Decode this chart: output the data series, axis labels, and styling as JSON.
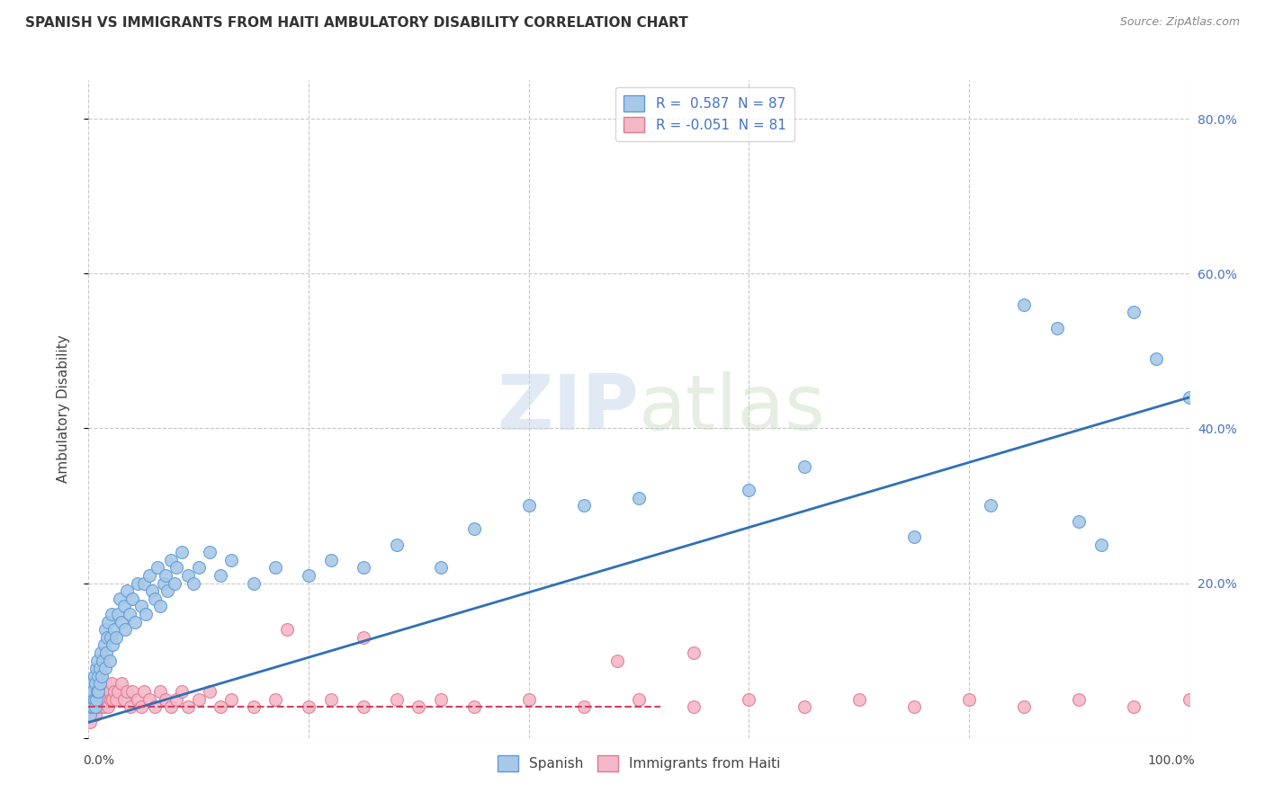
{
  "title": "SPANISH VS IMMIGRANTS FROM HAITI AMBULATORY DISABILITY CORRELATION CHART",
  "source": "Source: ZipAtlas.com",
  "ylabel": "Ambulatory Disability",
  "watermark": "ZIPatlas",
  "legend_label_blue": "R =  0.587  N = 87",
  "legend_label_pink": "R = -0.051  N = 81",
  "legend_bottom": [
    "Spanish",
    "Immigrants from Haiti"
  ],
  "spanish_color": "#a8c8e8",
  "spanish_edge": "#5b9bd5",
  "haiti_color": "#f4b8c8",
  "haiti_edge": "#e07890",
  "blue_line_color": "#3070b8",
  "red_line_color": "#d04060",
  "grid_color": "#c8c8c8",
  "background": "#ffffff",
  "xlim": [
    0.0,
    1.0
  ],
  "ylim": [
    0.0,
    0.85
  ],
  "yticks": [
    0.0,
    0.2,
    0.4,
    0.6,
    0.8
  ],
  "ytick_labels": [
    "",
    "20.0%",
    "40.0%",
    "60.0%",
    "80.0%"
  ],
  "xtick_positions": [
    0.0,
    0.2,
    0.4,
    0.6,
    0.8,
    1.0
  ],
  "spanish_x": [
    0.001,
    0.002,
    0.002,
    0.003,
    0.003,
    0.004,
    0.004,
    0.005,
    0.005,
    0.006,
    0.006,
    0.007,
    0.007,
    0.008,
    0.008,
    0.009,
    0.009,
    0.01,
    0.01,
    0.011,
    0.012,
    0.013,
    0.014,
    0.015,
    0.015,
    0.016,
    0.017,
    0.018,
    0.019,
    0.02,
    0.021,
    0.022,
    0.023,
    0.025,
    0.027,
    0.028,
    0.03,
    0.032,
    0.033,
    0.035,
    0.037,
    0.04,
    0.042,
    0.045,
    0.048,
    0.05,
    0.052,
    0.055,
    0.058,
    0.06,
    0.063,
    0.065,
    0.068,
    0.07,
    0.072,
    0.075,
    0.078,
    0.08,
    0.085,
    0.09,
    0.095,
    0.1,
    0.11,
    0.12,
    0.13,
    0.15,
    0.17,
    0.2,
    0.22,
    0.25,
    0.28,
    0.32,
    0.35,
    0.4,
    0.45,
    0.5,
    0.6,
    0.65,
    0.75,
    0.82,
    0.85,
    0.88,
    0.9,
    0.92,
    0.95,
    0.97,
    1.0
  ],
  "spanish_y": [
    0.03,
    0.04,
    0.06,
    0.05,
    0.07,
    0.04,
    0.06,
    0.05,
    0.08,
    0.04,
    0.07,
    0.05,
    0.09,
    0.06,
    0.1,
    0.08,
    0.06,
    0.09,
    0.07,
    0.11,
    0.08,
    0.1,
    0.12,
    0.09,
    0.14,
    0.11,
    0.13,
    0.15,
    0.1,
    0.13,
    0.16,
    0.12,
    0.14,
    0.13,
    0.16,
    0.18,
    0.15,
    0.17,
    0.14,
    0.19,
    0.16,
    0.18,
    0.15,
    0.2,
    0.17,
    0.2,
    0.16,
    0.21,
    0.19,
    0.18,
    0.22,
    0.17,
    0.2,
    0.21,
    0.19,
    0.23,
    0.2,
    0.22,
    0.24,
    0.21,
    0.2,
    0.22,
    0.24,
    0.21,
    0.23,
    0.2,
    0.22,
    0.21,
    0.23,
    0.22,
    0.25,
    0.22,
    0.27,
    0.3,
    0.3,
    0.31,
    0.32,
    0.35,
    0.26,
    0.3,
    0.56,
    0.53,
    0.28,
    0.25,
    0.55,
    0.49,
    0.44
  ],
  "haiti_x": [
    0.001,
    0.001,
    0.002,
    0.002,
    0.003,
    0.003,
    0.004,
    0.004,
    0.005,
    0.005,
    0.006,
    0.006,
    0.007,
    0.007,
    0.008,
    0.008,
    0.009,
    0.009,
    0.01,
    0.01,
    0.011,
    0.012,
    0.013,
    0.014,
    0.015,
    0.016,
    0.017,
    0.018,
    0.019,
    0.02,
    0.021,
    0.022,
    0.023,
    0.025,
    0.027,
    0.03,
    0.032,
    0.035,
    0.038,
    0.04,
    0.045,
    0.048,
    0.05,
    0.055,
    0.06,
    0.065,
    0.07,
    0.075,
    0.08,
    0.085,
    0.09,
    0.1,
    0.11,
    0.12,
    0.13,
    0.15,
    0.17,
    0.2,
    0.22,
    0.25,
    0.28,
    0.3,
    0.32,
    0.35,
    0.4,
    0.45,
    0.5,
    0.55,
    0.6,
    0.65,
    0.7,
    0.75,
    0.8,
    0.85,
    0.9,
    0.95,
    1.0,
    0.48,
    0.18,
    0.25,
    0.55
  ],
  "haiti_y": [
    0.02,
    0.04,
    0.03,
    0.05,
    0.04,
    0.06,
    0.03,
    0.05,
    0.04,
    0.06,
    0.03,
    0.05,
    0.04,
    0.06,
    0.05,
    0.07,
    0.04,
    0.06,
    0.05,
    0.07,
    0.04,
    0.05,
    0.06,
    0.04,
    0.07,
    0.05,
    0.06,
    0.04,
    0.06,
    0.05,
    0.07,
    0.05,
    0.06,
    0.05,
    0.06,
    0.07,
    0.05,
    0.06,
    0.04,
    0.06,
    0.05,
    0.04,
    0.06,
    0.05,
    0.04,
    0.06,
    0.05,
    0.04,
    0.05,
    0.06,
    0.04,
    0.05,
    0.06,
    0.04,
    0.05,
    0.04,
    0.05,
    0.04,
    0.05,
    0.04,
    0.05,
    0.04,
    0.05,
    0.04,
    0.05,
    0.04,
    0.05,
    0.04,
    0.05,
    0.04,
    0.05,
    0.04,
    0.05,
    0.04,
    0.05,
    0.04,
    0.05,
    0.1,
    0.14,
    0.13,
    0.11
  ],
  "blue_line_x": [
    0.0,
    1.0
  ],
  "blue_line_y": [
    0.02,
    0.44
  ],
  "red_line_x": [
    0.0,
    0.52
  ],
  "red_line_y": [
    0.04,
    0.04
  ]
}
